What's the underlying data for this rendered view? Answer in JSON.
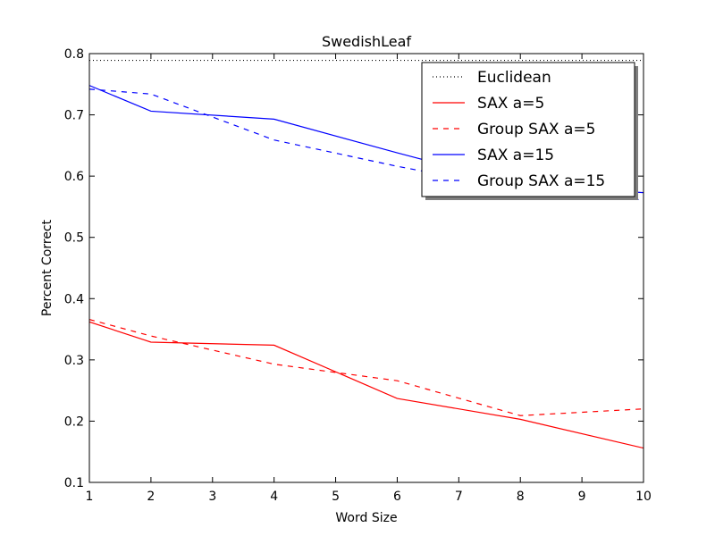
{
  "chart_data": {
    "type": "line",
    "title": "SwedishLeaf",
    "xlabel": "Word Size",
    "ylabel": "Percent Correct",
    "xlim": [
      1,
      10
    ],
    "ylim": [
      0.1,
      0.8
    ],
    "xticks": [
      "1",
      "2",
      "3",
      "4",
      "5",
      "6",
      "7",
      "8",
      "9",
      "10"
    ],
    "yticks": [
      "0.1",
      "0.2",
      "0.3",
      "0.4",
      "0.5",
      "0.6",
      "0.7",
      "0.8"
    ],
    "grid": false,
    "legend_position": "top-right",
    "series": [
      {
        "name": "Euclidean",
        "color": "#000000",
        "style": "dotted",
        "x": [
          1,
          10
        ],
        "values": [
          0.789,
          0.789
        ]
      },
      {
        "name": "SAX a=5",
        "color": "#ff0000",
        "style": "solid",
        "x": [
          1,
          2,
          4,
          6,
          8,
          10
        ],
        "values": [
          0.362,
          0.329,
          0.324,
          0.237,
          0.203,
          0.156
        ]
      },
      {
        "name": "Group SAX a=5",
        "color": "#ff0000",
        "style": "dashed",
        "x": [
          1,
          2,
          4,
          6,
          8,
          10
        ],
        "values": [
          0.366,
          0.339,
          0.293,
          0.266,
          0.209,
          0.22
        ]
      },
      {
        "name": "SAX a=15",
        "color": "#0000ff",
        "style": "solid",
        "x": [
          1,
          2,
          4,
          6,
          8,
          10
        ],
        "values": [
          0.748,
          0.706,
          0.693,
          0.638,
          0.585,
          0.573
        ]
      },
      {
        "name": "Group SAX a=15",
        "color": "#0000ff",
        "style": "dashed",
        "x": [
          1,
          2,
          4,
          6,
          8,
          10
        ],
        "values": [
          0.742,
          0.734,
          0.659,
          0.616,
          0.578,
          0.561
        ]
      }
    ]
  }
}
